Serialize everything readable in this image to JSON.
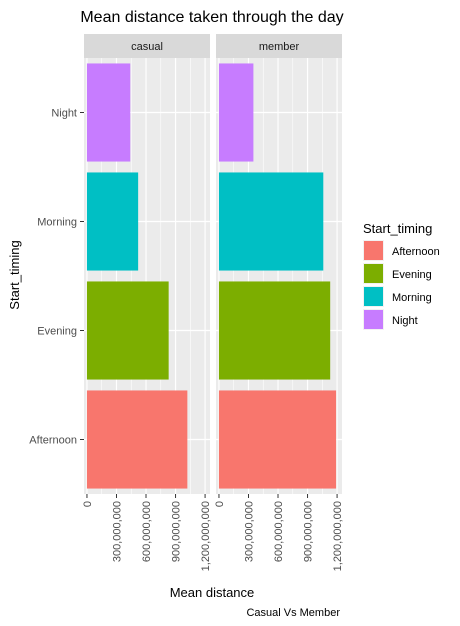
{
  "chart_data": {
    "type": "bar",
    "orientation": "horizontal",
    "title": "Mean distance taken through the day",
    "xlabel": "Mean distance",
    "ylabel": "Start_timing",
    "caption": "Casual Vs Member",
    "categories": [
      "Afternoon",
      "Evening",
      "Morning",
      "Night"
    ],
    "x_ticks": [
      0,
      300000000,
      600000000,
      900000000,
      1200000000
    ],
    "x_tick_labels": [
      "0",
      "300,000,000",
      "600,000,000",
      "900,000,000",
      "1,200,000,000"
    ],
    "xlim": [
      -30000000,
      1250000000
    ],
    "grid": true,
    "legend": {
      "title": "Start_timing",
      "position": "right",
      "items": [
        "Afternoon",
        "Evening",
        "Morning",
        "Night"
      ]
    },
    "colors": {
      "Afternoon": "#F8766D",
      "Evening": "#7CAE00",
      "Morning": "#00BFC4",
      "Night": "#C77CFF"
    },
    "panels": [
      {
        "name": "casual",
        "values": [
          1020000000,
          830000000,
          520000000,
          440000000
        ]
      },
      {
        "name": "member",
        "values": [
          1190000000,
          1130000000,
          1060000000,
          350000000
        ]
      }
    ]
  }
}
